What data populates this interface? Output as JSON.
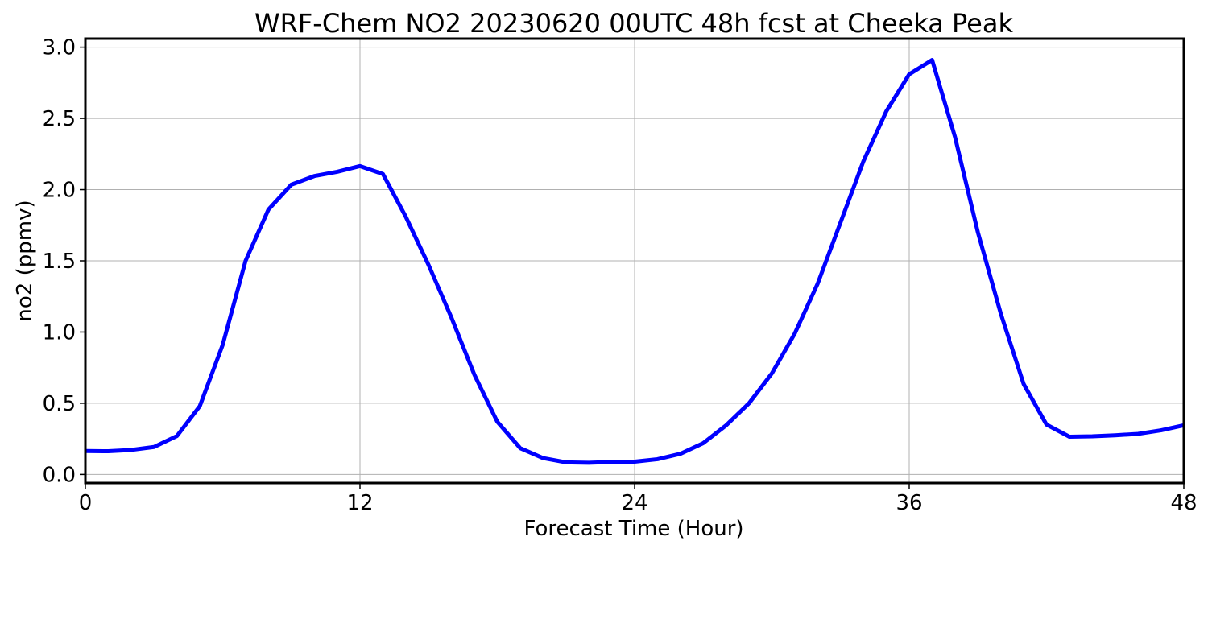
{
  "chart_data": {
    "type": "line",
    "title": "WRF-Chem NO2  20230620 00UTC 48h fcst at Cheeka Peak",
    "xlabel": "Forecast Time (Hour)",
    "ylabel": "no2  (ppmv)",
    "xlim": [
      0,
      48
    ],
    "ylim": [
      -0.06,
      3.06
    ],
    "xticks": [
      0,
      12,
      24,
      36,
      48
    ],
    "xtick_labels": [
      "0",
      "12",
      "24",
      "36",
      "48"
    ],
    "yticks": [
      0.0,
      0.5,
      1.0,
      1.5,
      2.0,
      2.5,
      3.0
    ],
    "ytick_labels": [
      "0.0",
      "0.5",
      "1.0",
      "1.5",
      "2.0",
      "2.5",
      "3.0"
    ],
    "grid": true,
    "series": [
      {
        "color": "#0000ff",
        "x": [
          0,
          1,
          2,
          3,
          4,
          5,
          6,
          7,
          8,
          9,
          10,
          11,
          12,
          13,
          14,
          15,
          16,
          17,
          18,
          19,
          20,
          21,
          22,
          23,
          24,
          25,
          26,
          27,
          28,
          29,
          30,
          31,
          32,
          33,
          34,
          35,
          36,
          37,
          38,
          39,
          40,
          41,
          42,
          43,
          44,
          45,
          46,
          47,
          48
        ],
        "values": [
          0.165,
          0.163,
          0.172,
          0.193,
          0.27,
          0.48,
          0.91,
          1.5,
          1.86,
          2.035,
          2.095,
          2.125,
          2.165,
          2.11,
          1.81,
          1.47,
          1.1,
          0.7,
          0.37,
          0.185,
          0.115,
          0.085,
          0.082,
          0.088,
          0.09,
          0.107,
          0.145,
          0.22,
          0.345,
          0.5,
          0.71,
          0.99,
          1.34,
          1.77,
          2.2,
          2.55,
          2.81,
          2.91,
          2.37,
          1.7,
          1.13,
          0.635,
          0.35,
          0.265,
          0.268,
          0.275,
          0.285,
          0.31,
          0.345
        ]
      }
    ]
  }
}
